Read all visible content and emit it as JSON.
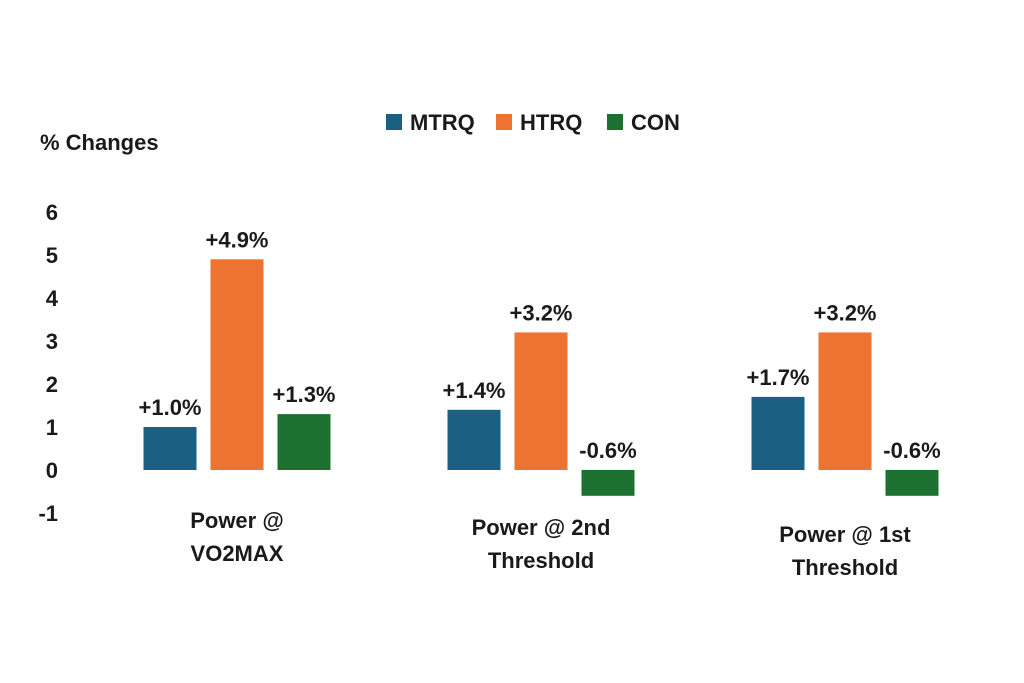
{
  "chart_data": {
    "type": "bar",
    "ylabel": "% Changes",
    "ylim": [
      -1,
      6
    ],
    "yticks": [
      "6",
      "5",
      "4",
      "3",
      "2",
      "1",
      "0",
      "-1"
    ],
    "ytick_values": [
      6,
      5,
      4,
      3,
      2,
      1,
      0,
      -1
    ],
    "grid": false,
    "legend_position": "top-center",
    "categories": [
      [
        "Power @",
        "VO2MAX"
      ],
      [
        "Power @ 2nd",
        "Threshold"
      ],
      [
        "Power @ 1st",
        "Threshold"
      ]
    ],
    "series": [
      {
        "name": "MTRQ",
        "color": "#1a6085",
        "values": [
          1.0,
          1.4,
          1.7
        ],
        "labels": [
          "+1.0%",
          "+1.4%",
          "+1.7%"
        ]
      },
      {
        "name": "HTRQ",
        "color": "#ec7332",
        "values": [
          4.9,
          3.2,
          3.2
        ],
        "labels": [
          "+4.9%",
          "+3.2%",
          "+3.2%"
        ]
      },
      {
        "name": "CON",
        "color": "#1c7030",
        "values": [
          1.3,
          -0.6,
          -0.6
        ],
        "labels": [
          "+1.3%",
          "-0.6%",
          "-0.6%"
        ]
      }
    ]
  }
}
